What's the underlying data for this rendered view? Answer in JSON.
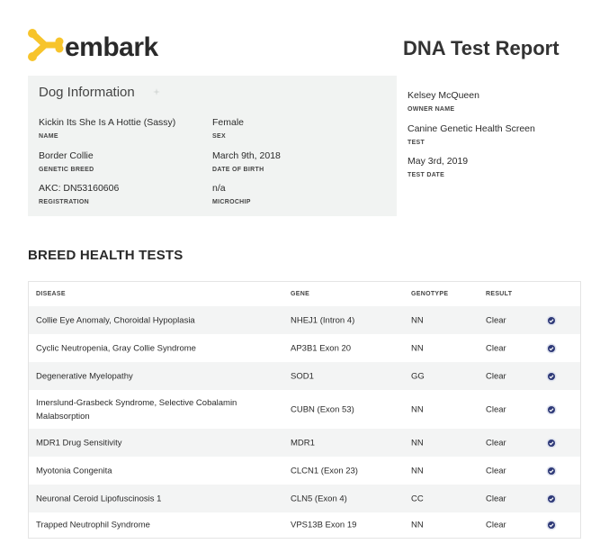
{
  "header": {
    "brand": "embark",
    "report_title": "DNA Test Report"
  },
  "dog_info": {
    "title": "Dog Information",
    "fields": [
      {
        "value": "Kickin Its She Is A Hottie (Sassy)",
        "label": "NAME"
      },
      {
        "value": "Female",
        "label": "SEX"
      },
      {
        "value": "Border Collie",
        "label": "GENETIC BREED"
      },
      {
        "value": "March 9th, 2018",
        "label": "DATE OF BIRTH"
      },
      {
        "value": "AKC: DN53160606",
        "label": "REGISTRATION"
      },
      {
        "value": "n/a",
        "label": "MICROCHIP"
      }
    ]
  },
  "owner_info": {
    "fields": [
      {
        "value": "Kelsey McQueen",
        "label": "OWNER NAME"
      },
      {
        "value": "Canine Genetic Health Screen",
        "label": "TEST"
      },
      {
        "value": "May 3rd, 2019",
        "label": "TEST DATE"
      }
    ]
  },
  "breed_health": {
    "title": "BREED HEALTH TESTS",
    "columns": [
      "DISEASE",
      "GENE",
      "GENOTYPE",
      "RESULT"
    ],
    "rows": [
      {
        "disease": "Collie Eye Anomaly, Choroidal Hypoplasia",
        "gene": "NHEJ1 (Intron 4)",
        "genotype": "NN",
        "result": "Clear"
      },
      {
        "disease": "Cyclic Neutropenia, Gray Collie Syndrome",
        "gene": "AP3B1 Exon 20",
        "genotype": "NN",
        "result": "Clear"
      },
      {
        "disease": "Degenerative Myelopathy",
        "gene": "SOD1",
        "genotype": "GG",
        "result": "Clear"
      },
      {
        "disease": "Imerslund-Grasbeck Syndrome, Selective Cobalamin Malabsorption",
        "gene": "CUBN (Exon 53)",
        "genotype": "NN",
        "result": "Clear"
      },
      {
        "disease": "MDR1 Drug Sensitivity",
        "gene": "MDR1",
        "genotype": "NN",
        "result": "Clear"
      },
      {
        "disease": "Myotonia Congenita",
        "gene": "CLCN1 (Exon 23)",
        "genotype": "NN",
        "result": "Clear"
      },
      {
        "disease": "Neuronal Ceroid Lipofuscinosis 1",
        "gene": "CLN5 (Exon 4)",
        "genotype": "CC",
        "result": "Clear"
      },
      {
        "disease": "Trapped Neutrophil Syndrome",
        "gene": "VPS13B Exon 19",
        "genotype": "NN",
        "result": "Clear"
      }
    ]
  },
  "colors": {
    "logo_yellow": "#f7c42b",
    "panel_bg": "#f1f3f2",
    "badge_navy": "#2f3a78"
  },
  "icons": {
    "logo": "embark-bone-logo-icon",
    "result_badge": "verified-seal-icon"
  }
}
